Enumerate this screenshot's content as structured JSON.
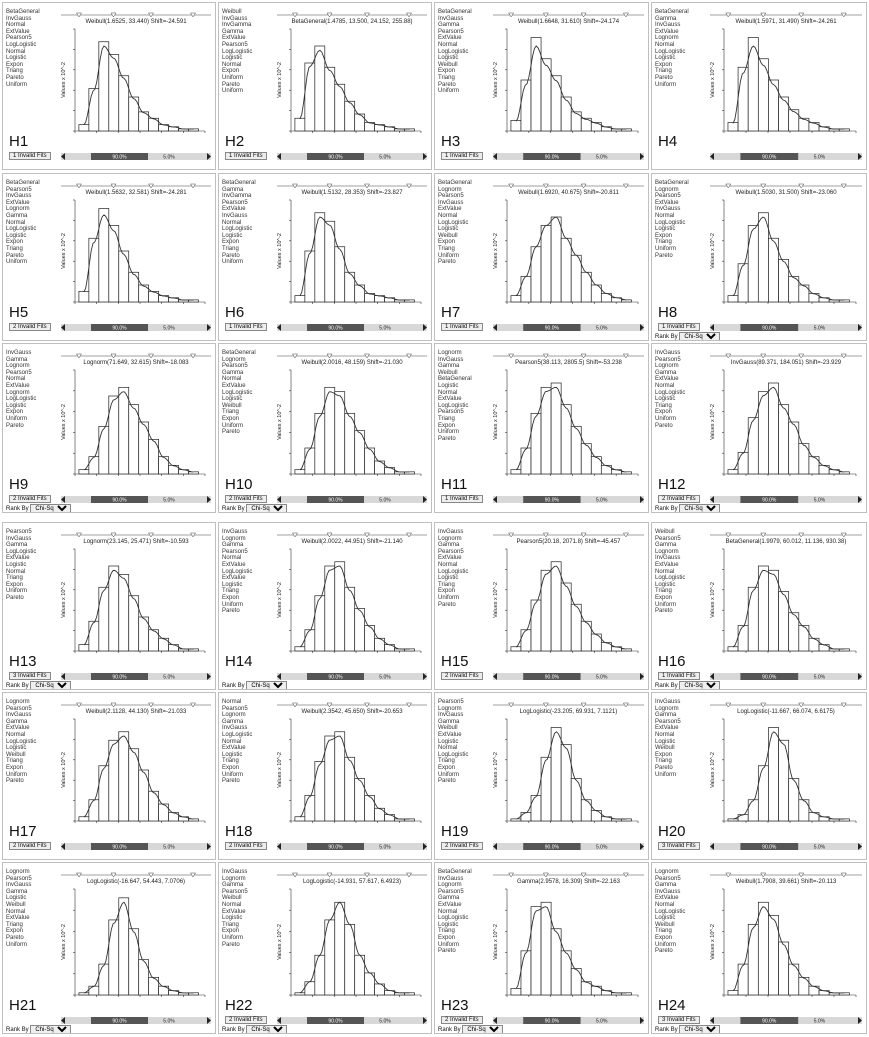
{
  "panels": [
    {
      "id": "H1",
      "list": [
        "BetaGeneral",
        "InvGauss",
        "Normal",
        "ExtValue",
        "Pearson5",
        "LogLogistic",
        "Normal",
        "Logistic",
        "Expon",
        "Triang",
        "Pareto",
        "Uniform"
      ],
      "invalid": "1 Invalid Fits",
      "rankby": "",
      "title": "Weibull(1.6525, 33.440) Shift=-24.591",
      "ylabel": "Values x 10^-2",
      "slider": [
        "",
        "90.0%",
        "5.0%"
      ]
    },
    {
      "id": "H2",
      "list": [
        "Weibull",
        "InvGauss",
        "InvGamma",
        "Gamma",
        "ExtValue",
        "Pearson5",
        "LogLogistic",
        "Logistic",
        "Normal",
        "Expon",
        "Uniform",
        "Pareto",
        "Uniform"
      ],
      "invalid": "1 Invalid Fits",
      "rankby": "",
      "title": "BetaGeneral(1.4785, 13.500, 24.152, 255.88)",
      "ylabel": "Values x 10^-2",
      "slider": [
        "",
        "90.0%",
        "5.0%"
      ]
    },
    {
      "id": "H3",
      "list": [
        "BetaGeneral",
        "InvGauss",
        "Gamma",
        "Pearson5",
        "ExtValue",
        "Normal",
        "LogLogistic",
        "Logistic",
        "Weibull",
        "Expon",
        "Triang",
        "Pareto",
        "Uniform"
      ],
      "invalid": "1 Invalid Fits",
      "rankby": "",
      "title": "Weibull(1.6648, 31.610) Shift=-24.174",
      "ylabel": "Values x 10^-2",
      "slider": [
        "",
        "90.0%",
        "5.0%"
      ]
    },
    {
      "id": "H4",
      "list": [
        "BetaGeneral",
        "Gamma",
        "InvGauss",
        "ExtValue",
        "Lognorm",
        "Normal",
        "LogLogistic",
        "Logistic",
        "Expon",
        "Triang",
        "Pareto",
        "Uniform"
      ],
      "invalid": "",
      "rankby": "",
      "title": "Weibull(1.5971, 31.490) Shift=-24.261",
      "ylabel": "Values x 10^-2",
      "slider": [
        "",
        "90.0%",
        "5.0%"
      ]
    },
    {
      "id": "H5",
      "list": [
        "BetaGeneral",
        "Pearson5",
        "InvGauss",
        "ExtValue",
        "Lognorm",
        "Gamma",
        "Normal",
        "LogLogistic",
        "Logistic",
        "Expon",
        "Triang",
        "Pareto",
        "Uniform"
      ],
      "invalid": "2 Invalid Fits",
      "rankby": "",
      "title": "Weibull(1.5632, 32.581) Shift=-24.281",
      "ylabel": "Values x 10^-2",
      "slider": [
        "",
        "90.0%",
        "5.0%"
      ]
    },
    {
      "id": "H6",
      "list": [
        "BetaGeneral",
        "Gamma",
        "InvGamma",
        "Pearson5",
        "ExtValue",
        "InvGauss",
        "Normal",
        "LogLogistic",
        "Logistic",
        "Expon",
        "Triang",
        "Pareto",
        "Uniform"
      ],
      "invalid": "1 Invalid Fits",
      "rankby": "",
      "title": "Weibull(1.5132, 28.353) Shift=-23.827",
      "ylabel": "Values x 10^-2",
      "slider": [
        "",
        "90.0%",
        "5.0%"
      ]
    },
    {
      "id": "H7",
      "list": [
        "BetaGeneral",
        "Lognorm",
        "Pearson5",
        "InvGauss",
        "ExtValue",
        "Normal",
        "LogLogistic",
        "Logistic",
        "Weibull",
        "Expon",
        "Triang",
        "Uniform",
        "Pareto"
      ],
      "invalid": "1 Invalid Fits",
      "rankby": "",
      "title": "Weibull(1.6920, 40.675) Shift=-20.811",
      "ylabel": "Values x 10^-2",
      "slider": [
        "",
        "90.0%",
        "5.0%"
      ]
    },
    {
      "id": "H8",
      "list": [
        "BetaGeneral",
        "Lognorm",
        "Pearson5",
        "ExtValue",
        "InvGauss",
        "Normal",
        "LogLogistic",
        "Logistic",
        "Expon",
        "Triang",
        "Uniform",
        "Pareto"
      ],
      "invalid": "1 Invalid Fits",
      "rankby": "Chi-Sq",
      "title": "Weibull(1.5030, 31.500) Shift=-23.060",
      "ylabel": "Values x 10^-2",
      "slider": [
        "",
        "90.0%",
        "5.0%"
      ]
    },
    {
      "id": "H9",
      "list": [
        "InvGauss",
        "Gamma",
        "Lognorm",
        "Pearson5",
        "Normal",
        "ExtValue",
        "Lognorm",
        "LogLogistic",
        "Logistic",
        "Expon",
        "Uniform",
        "Pareto"
      ],
      "invalid": "2 Invalid Fits",
      "rankby": "Chi-Sq",
      "title": "Lognorm(71.649, 32.615) Shift=-18.083",
      "ylabel": "Values x 10^-2",
      "slider": [
        "",
        "90.0%",
        "5.0%"
      ]
    },
    {
      "id": "H10",
      "list": [
        "BetaGeneral",
        "Lognorm",
        "Pearson5",
        "Gamma",
        "Normal",
        "ExtValue",
        "LogLogistic",
        "Logistic",
        "Weibull",
        "Triang",
        "Expon",
        "Uniform",
        "Pareto"
      ],
      "invalid": "2 Invalid Fits",
      "rankby": "Chi-Sq",
      "title": "Weibull(2.0016, 48.159) Shift=-21.030",
      "ylabel": "Values x 10^-2",
      "slider": [
        "",
        "90.0%",
        "5.0%"
      ]
    },
    {
      "id": "H11",
      "list": [
        "Lognorm",
        "InvGauss",
        "Gamma",
        "Weibull",
        "BetaGeneral",
        "Logistic",
        "Normal",
        "ExtValue",
        "LogLogistic",
        "Pearson5",
        "Triang",
        "Expon",
        "Uniform",
        "Pareto"
      ],
      "invalid": "1 Invalid Fits",
      "rankby": "",
      "title": "Pearson5(38.113, 2805.5) Shift=-53.238",
      "ylabel": "Values x 10^-2",
      "slider": [
        "",
        "90.0%",
        "5.0%"
      ]
    },
    {
      "id": "H12",
      "list": [
        "InvGauss",
        "Pearson5",
        "Lognorm",
        "Gamma",
        "ExtValue",
        "Normal",
        "LogLogistic",
        "Logistic",
        "Triang",
        "Expon",
        "Uniform",
        "Pareto"
      ],
      "invalid": "2 Invalid Fits",
      "rankby": "Chi-Sq",
      "title": "InvGauss(89.371, 184.051) Shift=-23.929",
      "ylabel": "Values x 10^-2",
      "slider": [
        "",
        "90.0%",
        "5.0%"
      ]
    },
    {
      "id": "H13",
      "list": [
        "Pearson5",
        "InvGauss",
        "Gamma",
        "LogLogistic",
        "ExtValue",
        "Logistic",
        "Normal",
        "Triang",
        "Expon",
        "Uniform",
        "Pareto"
      ],
      "invalid": "3 Invalid Fits",
      "rankby": "Chi-Sq",
      "title": "Lognorm(23.145, 25.471) Shift=-10.593",
      "ylabel": "Values x 10^-2",
      "slider": [
        "",
        "90.0%",
        "5.0%"
      ]
    },
    {
      "id": "H14",
      "list": [
        "InvGauss",
        "Lognorm",
        "Gamma",
        "Pearson5",
        "Normal",
        "ExtValue",
        "LogLogistic",
        "ExtValue",
        "Logistic",
        "Triang",
        "Expon",
        "Uniform",
        "Pareto"
      ],
      "invalid": "",
      "rankby": "Chi-Sq",
      "title": "Weibull(2.0022, 44.951) Shift=-21.140",
      "ylabel": "Values x 10^-2",
      "slider": [
        "",
        "90.0%",
        "5.0%"
      ]
    },
    {
      "id": "H15",
      "list": [
        "InvGauss",
        "Lognorm",
        "Gamma",
        "Pearson5",
        "ExtValue",
        "Normal",
        "LogLogistic",
        "Logistic",
        "Triang",
        "Expon",
        "Uniform",
        "Pareto"
      ],
      "invalid": "2 Invalid Fits",
      "rankby": "",
      "title": "Pearson5(20.18, 2071.8) Shift=-45.457",
      "ylabel": "Values x 10^-2",
      "slider": [
        "",
        "90.0%",
        "5.0%"
      ]
    },
    {
      "id": "H16",
      "list": [
        "Weibull",
        "Pearson5",
        "Gamma",
        "Lognorm",
        "InvGauss",
        "ExtValue",
        "Normal",
        "LogLogistic",
        "Logistic",
        "Triang",
        "Expon",
        "Uniform",
        "Pareto"
      ],
      "invalid": "1 Invalid Fits",
      "rankby": "Chi-Sq",
      "title": "BetaGeneral(1.9979, 60.012, 11.136, 930.38)",
      "ylabel": "Values x 10^-2",
      "slider": [
        "",
        "90.0%",
        "5.0%"
      ]
    },
    {
      "id": "H17",
      "list": [
        "Lognorm",
        "Pearson5",
        "InvGauss",
        "Gamma",
        "ExtValue",
        "Normal",
        "LogLogistic",
        "Logistic",
        "Weibull",
        "Triang",
        "Expon",
        "Uniform",
        "Pareto"
      ],
      "invalid": "2 Invalid Fits",
      "rankby": "",
      "title": "Weibull(2.1128, 44.130) Shift=-21.033",
      "ylabel": "Values x 10^-2",
      "slider": [
        "",
        "90.0%",
        "5.0%"
      ]
    },
    {
      "id": "H18",
      "list": [
        "Normal",
        "Pearson5",
        "Lognorm",
        "Gamma",
        "InvGauss",
        "LogLogistic",
        "Normal",
        "ExtValue",
        "Logistic",
        "Triang",
        "Expon",
        "Uniform",
        "Pareto"
      ],
      "invalid": "2 Invalid Fits",
      "rankby": "",
      "title": "Weibull(2.3542, 45.650) Shift=-20.653",
      "ylabel": "Values x 10^-2",
      "slider": [
        "",
        "90.0%",
        "5.0%"
      ]
    },
    {
      "id": "H19",
      "list": [
        "Pearson5",
        "Lognorm",
        "InvGauss",
        "Gamma",
        "Weibull",
        "ExtValue",
        "Logistic",
        "Normal",
        "LogLogistic",
        "Triang",
        "Expon",
        "Uniform",
        "Pareto"
      ],
      "invalid": "2 Invalid Fits",
      "rankby": "",
      "title": "LogLogistic(-23.205, 69.931, 7.1121)",
      "ylabel": "Values x 10^-2",
      "slider": [
        "",
        "90.0%",
        "5.0%"
      ]
    },
    {
      "id": "H20",
      "list": [
        "InvGauss",
        "Lognorm",
        "Gamma",
        "Pearson5",
        "ExtValue",
        "Normal",
        "Logistic",
        "Weibull",
        "Expon",
        "Triang",
        "Pareto",
        "Uniform"
      ],
      "invalid": "3 Invalid Fits",
      "rankby": "",
      "title": "LogLogistic(-11.667, 66.074, 6.6175)",
      "ylabel": "Values x 10^-2",
      "slider": [
        "",
        "90.0%",
        "5.0%"
      ]
    },
    {
      "id": "H21",
      "list": [
        "Lognorm",
        "Pearson5",
        "InvGauss",
        "Gamma",
        "Logistic",
        "Weibull",
        "Normal",
        "ExtValue",
        "Triang",
        "Expon",
        "Pareto",
        "Uniform"
      ],
      "invalid": "",
      "rankby": "Chi-Sq",
      "title": "LogLogistic(-16.647, 54.443, 7.0706)",
      "ylabel": "Values x 10^-2",
      "slider": [
        "",
        "90.0%",
        "5.0%"
      ]
    },
    {
      "id": "H22",
      "list": [
        "InvGauss",
        "Lognorm",
        "Gamma",
        "Pearson5",
        "Weibull",
        "Normal",
        "ExtValue",
        "Logistic",
        "Triang",
        "Expon",
        "Uniform",
        "Pareto"
      ],
      "invalid": "2 Invalid Fits",
      "rankby": "Chi-Sq",
      "title": "LogLogistic(-14.931, 57.617, 6.4923)",
      "ylabel": "Values x 10^-2",
      "slider": [
        "",
        "90.0%",
        "5.0%"
      ]
    },
    {
      "id": "H23",
      "list": [
        "BetaGeneral",
        "InvGauss",
        "Lognorm",
        "Pearson5",
        "Gamma",
        "ExtValue",
        "Normal",
        "LogLogistic",
        "Logistic",
        "Triang",
        "Expon",
        "Uniform",
        "Pareto"
      ],
      "invalid": "2 Invalid Fits",
      "rankby": "Chi-Sq",
      "title": "Gamma(2.9578, 16.309) Shift=-22.163",
      "ylabel": "Values x 10^-2",
      "slider": [
        "",
        "90.0%",
        "5.0%"
      ]
    },
    {
      "id": "H24",
      "list": [
        "Lognorm",
        "Pearson5",
        "Gamma",
        "InvGauss",
        "ExtValue",
        "Normal",
        "LogLogistic",
        "Logistic",
        "Weibull",
        "Triang",
        "Expon",
        "Uniform",
        "Pareto"
      ],
      "invalid": "3 Invalid Fits",
      "rankby": "Chi-Sq",
      "title": "Weibull(1.7908, 39.661) Shift=-20.113",
      "ylabel": "Values x 10^-2",
      "slider": [
        "",
        "90.0%",
        "5.0%"
      ]
    }
  ],
  "rankby_label": "Rank By",
  "chart_data": [
    {
      "panel": "H1",
      "type": "bar",
      "values": [
        3,
        20,
        42,
        36,
        26,
        16,
        9,
        6,
        3,
        2,
        1,
        1
      ],
      "fit_peak": 40
    },
    {
      "panel": "H2",
      "type": "bar",
      "values": [
        6,
        32,
        40,
        30,
        22,
        14,
        8,
        4,
        3,
        2,
        1,
        1
      ],
      "fit_peak": 38
    },
    {
      "panel": "H3",
      "type": "bar",
      "values": [
        5,
        24,
        44,
        34,
        26,
        16,
        9,
        6,
        4,
        2,
        1,
        1
      ],
      "fit_peak": 40
    },
    {
      "panel": "H4",
      "type": "bar",
      "values": [
        4,
        30,
        44,
        34,
        24,
        16,
        10,
        6,
        4,
        2,
        1,
        1
      ],
      "fit_peak": 40
    },
    {
      "panel": "H5",
      "type": "bar",
      "values": [
        5,
        30,
        44,
        36,
        24,
        14,
        8,
        5,
        3,
        2,
        1,
        1
      ],
      "fit_peak": 41
    },
    {
      "panel": "H6",
      "type": "bar",
      "values": [
        3,
        24,
        42,
        38,
        26,
        14,
        8,
        4,
        3,
        2,
        1,
        1
      ],
      "fit_peak": 40
    },
    {
      "panel": "H7",
      "type": "bar",
      "values": [
        3,
        12,
        26,
        36,
        40,
        30,
        22,
        14,
        8,
        4,
        2,
        1
      ],
      "fit_peak": 40
    },
    {
      "panel": "H8",
      "type": "bar",
      "values": [
        3,
        18,
        36,
        42,
        30,
        20,
        12,
        8,
        4,
        2,
        1,
        1
      ],
      "fit_peak": 40
    },
    {
      "panel": "H9",
      "type": "bar",
      "values": [
        2,
        8,
        22,
        36,
        40,
        32,
        24,
        16,
        8,
        4,
        2,
        1
      ],
      "fit_peak": 38
    },
    {
      "panel": "H10",
      "type": "bar",
      "values": [
        2,
        12,
        28,
        40,
        38,
        28,
        20,
        12,
        6,
        3,
        1,
        1
      ],
      "fit_peak": 38
    },
    {
      "panel": "H11",
      "type": "bar",
      "values": [
        2,
        12,
        28,
        40,
        42,
        32,
        22,
        14,
        8,
        4,
        2,
        1
      ],
      "fit_peak": 40
    },
    {
      "panel": "H12",
      "type": "bar",
      "values": [
        2,
        10,
        26,
        38,
        42,
        32,
        24,
        14,
        8,
        4,
        2,
        1
      ],
      "fit_peak": 40
    },
    {
      "panel": "H13",
      "type": "bar",
      "values": [
        3,
        14,
        30,
        40,
        36,
        26,
        16,
        10,
        6,
        3,
        1,
        1
      ],
      "fit_peak": 38
    },
    {
      "panel": "H14",
      "type": "bar",
      "values": [
        2,
        10,
        26,
        40,
        42,
        30,
        20,
        12,
        6,
        3,
        1,
        1
      ],
      "fit_peak": 40
    },
    {
      "panel": "H15",
      "type": "bar",
      "values": [
        2,
        10,
        24,
        38,
        42,
        32,
        22,
        14,
        8,
        4,
        2,
        1
      ],
      "fit_peak": 40
    },
    {
      "panel": "H16",
      "type": "bar",
      "values": [
        2,
        12,
        30,
        40,
        38,
        28,
        18,
        12,
        6,
        3,
        1,
        1
      ],
      "fit_peak": 38
    },
    {
      "panel": "H17",
      "type": "bar",
      "values": [
        2,
        10,
        26,
        38,
        42,
        34,
        24,
        14,
        8,
        4,
        2,
        1
      ],
      "fit_peak": 40
    },
    {
      "panel": "H18",
      "type": "bar",
      "values": [
        2,
        12,
        28,
        40,
        42,
        30,
        20,
        12,
        6,
        3,
        1,
        1
      ],
      "fit_peak": 40
    },
    {
      "panel": "H19",
      "type": "bar",
      "values": [
        1,
        4,
        12,
        30,
        44,
        36,
        20,
        10,
        5,
        2,
        1,
        1
      ],
      "fit_peak": 42
    },
    {
      "panel": "H20",
      "type": "bar",
      "values": [
        1,
        3,
        10,
        26,
        44,
        38,
        20,
        10,
        4,
        2,
        1,
        1
      ],
      "fit_peak": 42
    },
    {
      "panel": "H21",
      "type": "bar",
      "values": [
        1,
        4,
        14,
        34,
        44,
        30,
        16,
        8,
        4,
        2,
        1,
        1
      ],
      "fit_peak": 42
    },
    {
      "panel": "H22",
      "type": "bar",
      "values": [
        1,
        6,
        18,
        34,
        42,
        32,
        18,
        10,
        5,
        2,
        1,
        1
      ],
      "fit_peak": 42
    },
    {
      "panel": "H23",
      "type": "bar",
      "values": [
        3,
        20,
        40,
        42,
        30,
        20,
        12,
        6,
        4,
        2,
        1,
        1
      ],
      "fit_peak": 40
    },
    {
      "panel": "H24",
      "type": "bar",
      "values": [
        2,
        14,
        32,
        42,
        36,
        24,
        14,
        8,
        4,
        2,
        1,
        1
      ],
      "fit_peak": 40
    }
  ]
}
